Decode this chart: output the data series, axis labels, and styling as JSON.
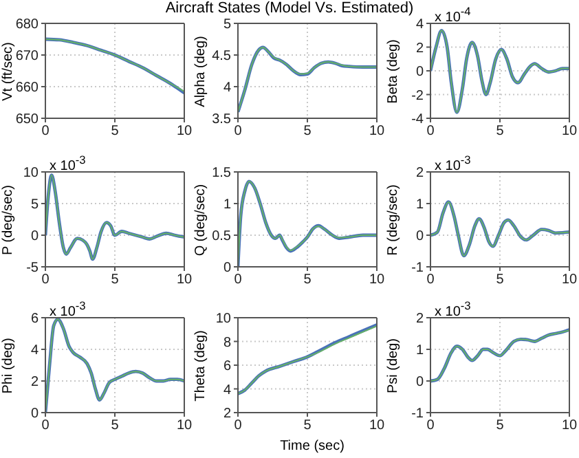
{
  "chart_data": [
    {
      "type": "line",
      "ylabel": "Vt (ft/sec)",
      "x": [
        0,
        1,
        2,
        3,
        4,
        5,
        6,
        7,
        8,
        9,
        10
      ],
      "xlim": [
        0,
        10
      ],
      "xticks": [
        0,
        5,
        10
      ],
      "ylim": [
        650,
        680
      ],
      "yticks": [
        650,
        660,
        670,
        680
      ],
      "grid": true,
      "series": [
        {
          "color": "#4a72b8",
          "values": [
            675,
            674.8,
            674,
            673,
            671.5,
            670,
            668,
            666,
            663.5,
            661,
            658
          ]
        },
        {
          "color": "#66b266",
          "values": [
            675,
            674.8,
            674,
            673,
            671.5,
            670,
            668,
            666,
            663.5,
            661,
            658.5
          ]
        }
      ]
    },
    {
      "type": "line",
      "title": "Aircraft States (Model Vs. Estimated)",
      "ylabel": "Alpha (deg)",
      "x": [
        0,
        0.5,
        1,
        1.5,
        1.8,
        2.2,
        2.6,
        3,
        3.5,
        4,
        4.5,
        5,
        5.5,
        6,
        6.5,
        7,
        7.5,
        8,
        9,
        10
      ],
      "xlim": [
        0,
        10
      ],
      "xticks": [
        0,
        5,
        10
      ],
      "ylim": [
        3.5,
        5
      ],
      "yticks": [
        3.5,
        4,
        4.5,
        5
      ],
      "grid": true,
      "series": [
        {
          "color": "#4a72b8",
          "values": [
            3.6,
            3.95,
            4.35,
            4.58,
            4.62,
            4.55,
            4.45,
            4.42,
            4.35,
            4.25,
            4.19,
            4.2,
            4.3,
            4.37,
            4.39,
            4.37,
            4.33,
            4.32,
            4.31,
            4.31
          ]
        },
        {
          "color": "#66b266",
          "values": [
            3.6,
            3.95,
            4.35,
            4.58,
            4.62,
            4.55,
            4.46,
            4.42,
            4.35,
            4.25,
            4.2,
            4.21,
            4.3,
            4.37,
            4.39,
            4.37,
            4.34,
            4.32,
            4.31,
            4.31
          ]
        }
      ]
    },
    {
      "type": "line",
      "ylabel": "Beta (deg)",
      "annotations": [
        "x 10$^{-4}$"
      ],
      "x": [
        0,
        0.4,
        0.8,
        1.2,
        1.5,
        1.9,
        2.3,
        2.6,
        3,
        3.4,
        3.7,
        4,
        4.3,
        4.7,
        5.1,
        5.5,
        5.9,
        6.3,
        6.8,
        7.2,
        7.5,
        8,
        8.5,
        9,
        9.5,
        10
      ],
      "xlim": [
        0,
        10
      ],
      "xticks": [
        0,
        5,
        10
      ],
      "ylim": [
        -4,
        4
      ],
      "yticks": [
        -4,
        -2,
        0,
        2,
        4
      ],
      "grid": true,
      "series": [
        {
          "color": "#4a72b8",
          "values": [
            0,
            2,
            3.4,
            2,
            -1,
            -3.5,
            -1.5,
            1,
            2.4,
            1.2,
            -0.8,
            -2,
            -1,
            1,
            1.8,
            1,
            -0.5,
            -1,
            -0.2,
            0.4,
            0.6,
            0.2,
            -0.1,
            0,
            0.2,
            0.2
          ]
        },
        {
          "color": "#66b266",
          "values": [
            0,
            2,
            3.4,
            2,
            -1,
            -3.5,
            -1.5,
            1,
            2.4,
            1.2,
            -0.8,
            -2,
            -1,
            1,
            1.8,
            1,
            -0.5,
            -1,
            -0.2,
            0.4,
            0.6,
            0.2,
            -0.1,
            0,
            0.2,
            0.2
          ]
        }
      ]
    },
    {
      "type": "line",
      "ylabel": "P (deg/sec)",
      "annotations": [
        "x 10$^{-3}$"
      ],
      "x": [
        0,
        0.2,
        0.45,
        0.7,
        1,
        1.3,
        1.5,
        1.8,
        2.3,
        2.7,
        3,
        3.2,
        3.4,
        3.7,
        4,
        4.4,
        4.7,
        5,
        5.5,
        6,
        7,
        7.5,
        8,
        8.7,
        9.3,
        10
      ],
      "xlim": [
        0,
        10
      ],
      "xticks": [
        0,
        5,
        10
      ],
      "ylim": [
        -5,
        10
      ],
      "yticks": [
        -5,
        0,
        5,
        10
      ],
      "grid": true,
      "series": [
        {
          "color": "#4a72b8",
          "values": [
            0,
            6,
            9.5,
            7,
            2,
            -2,
            -3,
            -2,
            -0.5,
            -0.8,
            -1.5,
            -2.5,
            -3.8,
            -2,
            0.5,
            2,
            1.5,
            0,
            0.6,
            0.3,
            -0.3,
            -0.6,
            -0.2,
            0.3,
            0,
            -0.3
          ]
        },
        {
          "color": "#66b266",
          "values": [
            0,
            6,
            9.5,
            7,
            2,
            -2,
            -3,
            -2,
            -0.5,
            -0.8,
            -1.5,
            -2.5,
            -3.8,
            -2,
            0.5,
            2,
            1.5,
            0,
            0.6,
            0.3,
            -0.3,
            -0.6,
            -0.2,
            0.3,
            0,
            -0.3
          ]
        }
      ]
    },
    {
      "type": "line",
      "ylabel": "Q (deg/sec)",
      "x": [
        0,
        0.2,
        0.5,
        0.8,
        1.2,
        1.6,
        2,
        2.4,
        2.7,
        3,
        3.2,
        3.5,
        3.8,
        4.2,
        4.7,
        5,
        5.4,
        5.8,
        6.2,
        6.8,
        7.3,
        8,
        9,
        10
      ],
      "xlim": [
        0,
        10
      ],
      "xticks": [
        0,
        5,
        10
      ],
      "ylim": [
        0,
        1.5
      ],
      "yticks": [
        0,
        0.5,
        1,
        1.5
      ],
      "grid": true,
      "series": [
        {
          "color": "#4a72b8",
          "values": [
            0,
            0.8,
            1.2,
            1.35,
            1.25,
            1,
            0.7,
            0.5,
            0.45,
            0.5,
            0.42,
            0.3,
            0.25,
            0.3,
            0.4,
            0.47,
            0.6,
            0.65,
            0.6,
            0.5,
            0.45,
            0.47,
            0.5,
            0.5
          ]
        },
        {
          "color": "#66b266",
          "values": [
            0,
            0.8,
            1.2,
            1.35,
            1.25,
            1,
            0.7,
            0.5,
            0.45,
            0.5,
            0.43,
            0.31,
            0.26,
            0.31,
            0.4,
            0.47,
            0.6,
            0.64,
            0.6,
            0.5,
            0.46,
            0.47,
            0.5,
            0.5
          ]
        }
      ]
    },
    {
      "type": "line",
      "ylabel": "R (deg/sec)",
      "annotations": [
        "x 10$^{-3}$"
      ],
      "x": [
        0,
        0.5,
        0.9,
        1.3,
        1.7,
        2,
        2.4,
        2.8,
        3.2,
        3.5,
        3.9,
        4.2,
        4.5,
        4.9,
        5.3,
        5.6,
        6,
        6.5,
        6.9,
        7.4,
        8,
        8.5,
        9,
        9.5,
        10
      ],
      "xlim": [
        0,
        10
      ],
      "xticks": [
        0,
        5,
        10
      ],
      "ylim": [
        -1,
        2
      ],
      "yticks": [
        -1,
        0,
        1,
        2
      ],
      "grid": true,
      "series": [
        {
          "color": "#4a72b8",
          "values": [
            0,
            0.1,
            0.7,
            1.05,
            0.6,
            0,
            -0.65,
            -0.3,
            0.3,
            0.52,
            0.2,
            -0.2,
            -0.35,
            0,
            0.4,
            0.48,
            0.3,
            -0.05,
            -0.15,
            0,
            0.18,
            0.15,
            0.07,
            0.08,
            0.1
          ]
        },
        {
          "color": "#66b266",
          "values": [
            0,
            0.1,
            0.7,
            1.05,
            0.6,
            0,
            -0.65,
            -0.3,
            0.3,
            0.52,
            0.2,
            -0.2,
            -0.35,
            0,
            0.4,
            0.48,
            0.3,
            -0.05,
            -0.15,
            0,
            0.18,
            0.15,
            0.07,
            0.08,
            0.1
          ]
        }
      ]
    },
    {
      "type": "line",
      "ylabel": "Phi (deg)",
      "annotations": [
        "x 10$^{-3}$"
      ],
      "x": [
        0,
        0.3,
        0.6,
        0.9,
        1.3,
        1.7,
        2,
        2.5,
        3,
        3.3,
        3.6,
        3.9,
        4.2,
        4.6,
        5,
        5.5,
        6,
        6.5,
        7,
        7.5,
        8,
        8.5,
        9,
        9.5,
        10
      ],
      "xlim": [
        0,
        10
      ],
      "xticks": [
        0,
        5,
        10
      ],
      "ylim": [
        0,
        6
      ],
      "yticks": [
        0,
        2,
        4,
        6
      ],
      "grid": true,
      "series": [
        {
          "color": "#4a72b8",
          "values": [
            0,
            3,
            5.5,
            5.9,
            5.3,
            4.2,
            3.8,
            3.5,
            3.1,
            2.5,
            1.5,
            0.8,
            1.2,
            1.9,
            2.1,
            2.3,
            2.5,
            2.6,
            2.5,
            2.2,
            2,
            2,
            2.1,
            2.1,
            2
          ]
        },
        {
          "color": "#66b266",
          "values": [
            0,
            3,
            5.5,
            5.9,
            5.3,
            4.2,
            3.8,
            3.5,
            3.1,
            2.5,
            1.5,
            0.8,
            1.2,
            1.9,
            2.1,
            2.3,
            2.5,
            2.6,
            2.5,
            2.2,
            2,
            2,
            2.1,
            2.1,
            2
          ]
        }
      ]
    },
    {
      "type": "line",
      "ylabel": "Theta (deg)",
      "xlabel": "Time (sec)",
      "x": [
        0,
        0.5,
        1,
        1.5,
        2,
        3,
        4,
        5,
        6,
        7,
        8,
        9,
        10
      ],
      "xlim": [
        0,
        10
      ],
      "xticks": [
        0,
        5,
        10
      ],
      "ylim": [
        2,
        10
      ],
      "yticks": [
        2,
        4,
        6,
        8,
        10
      ],
      "grid": true,
      "series": [
        {
          "color": "#4a72b8",
          "values": [
            3.6,
            3.9,
            4.5,
            5.1,
            5.5,
            5.9,
            6.3,
            6.7,
            7.3,
            7.9,
            8.4,
            8.9,
            9.4
          ]
        },
        {
          "color": "#66b266",
          "values": [
            3.6,
            3.9,
            4.5,
            5.1,
            5.5,
            5.9,
            6.3,
            6.7,
            7.2,
            7.8,
            8.3,
            8.8,
            9.3
          ]
        }
      ]
    },
    {
      "type": "line",
      "ylabel": "Psi (deg)",
      "annotations": [
        "x 10$^{-3}$"
      ],
      "x": [
        0,
        0.5,
        1,
        1.5,
        1.9,
        2.3,
        2.7,
        3,
        3.4,
        3.8,
        4.1,
        4.5,
        5,
        5.4,
        6,
        6.5,
        7,
        7.5,
        8,
        8.5,
        9,
        9.5,
        10
      ],
      "xlim": [
        0,
        10
      ],
      "xticks": [
        0,
        5,
        10
      ],
      "ylim": [
        -1,
        2
      ],
      "yticks": [
        -1,
        0,
        1,
        2
      ],
      "grid": true,
      "series": [
        {
          "color": "#4a72b8",
          "values": [
            0,
            0.05,
            0.4,
            0.9,
            1.1,
            1,
            0.75,
            0.65,
            0.8,
            1,
            1,
            0.9,
            0.8,
            0.95,
            1.25,
            1.32,
            1.3,
            1.25,
            1.35,
            1.45,
            1.5,
            1.55,
            1.62
          ]
        },
        {
          "color": "#66b266",
          "values": [
            0,
            0.05,
            0.4,
            0.9,
            1.1,
            1,
            0.75,
            0.65,
            0.8,
            1,
            1,
            0.9,
            0.8,
            0.95,
            1.25,
            1.32,
            1.3,
            1.25,
            1.35,
            1.45,
            1.5,
            1.55,
            1.6
          ]
        }
      ]
    }
  ]
}
